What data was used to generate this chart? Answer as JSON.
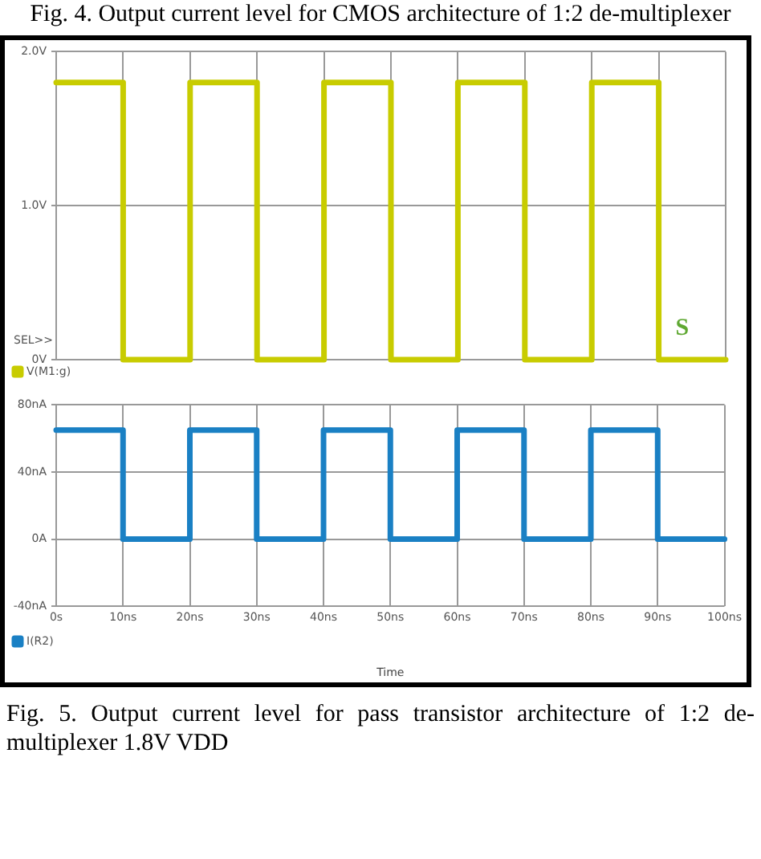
{
  "chart_data": [
    {
      "type": "step",
      "annotations": [
        "Fig. 4. Output current level for CMOS architecture of 1:2 de-multiplexer",
        "SEL>>",
        "S"
      ],
      "x": [
        0,
        10,
        20,
        30,
        40,
        50,
        60,
        70,
        80,
        90,
        100
      ],
      "series": [
        {
          "name": "V(M1:g)",
          "color": "#c8cc00",
          "values": [
            1.8,
            0,
            1.8,
            0,
            1.8,
            0,
            1.8,
            0,
            1.8,
            0,
            0
          ]
        }
      ],
      "xlim": [
        0,
        100
      ],
      "xticks": [
        0,
        10,
        20,
        30,
        40,
        50,
        60,
        70,
        80,
        90,
        100
      ],
      "ylim": [
        0,
        2
      ],
      "yticks": [
        {
          "value": 0,
          "label": "0V"
        },
        {
          "value": 1,
          "label": "1.0V"
        },
        {
          "value": 2,
          "label": "2.0V"
        }
      ],
      "tick_labels": "y",
      "grid": true,
      "legend": "bottom left",
      "marker": "none",
      "line_style": "solid"
    },
    {
      "type": "step",
      "xlabel": "Time",
      "annotations": [
        "Fig. 5. Output current level for pass transistor architecture of 1:2 de-multiplexer 1.8V VDD"
      ],
      "x": [
        0,
        10,
        20,
        30,
        40,
        50,
        60,
        70,
        80,
        90,
        100
      ],
      "series": [
        {
          "name": "I(R2)",
          "color": "#1a80c4",
          "values": [
            65,
            0,
            65,
            0,
            65,
            0,
            65,
            0,
            65,
            0,
            0
          ]
        }
      ],
      "xlim": [
        0,
        100
      ],
      "xticks": [
        {
          "value": 0,
          "label": "0s"
        },
        {
          "value": 10,
          "label": "10ns"
        },
        {
          "value": 20,
          "label": "20ns"
        },
        {
          "value": 30,
          "label": "30ns"
        },
        {
          "value": 40,
          "label": "40ns"
        },
        {
          "value": 50,
          "label": "50ns"
        },
        {
          "value": 60,
          "label": "60ns"
        },
        {
          "value": 70,
          "label": "70ns"
        },
        {
          "value": 80,
          "label": "80ns"
        },
        {
          "value": 90,
          "label": "90ns"
        },
        {
          "value": 100,
          "label": "100ns"
        }
      ],
      "ylim": [
        -40,
        80
      ],
      "yticks": [
        {
          "value": -40,
          "label": "-40nA"
        },
        {
          "value": 0,
          "label": "0A"
        },
        {
          "value": 40,
          "label": "40nA"
        },
        {
          "value": 80,
          "label": "80nA"
        }
      ],
      "grid": true,
      "legend": "bottom left",
      "marker": "none",
      "line_style": "solid"
    }
  ]
}
